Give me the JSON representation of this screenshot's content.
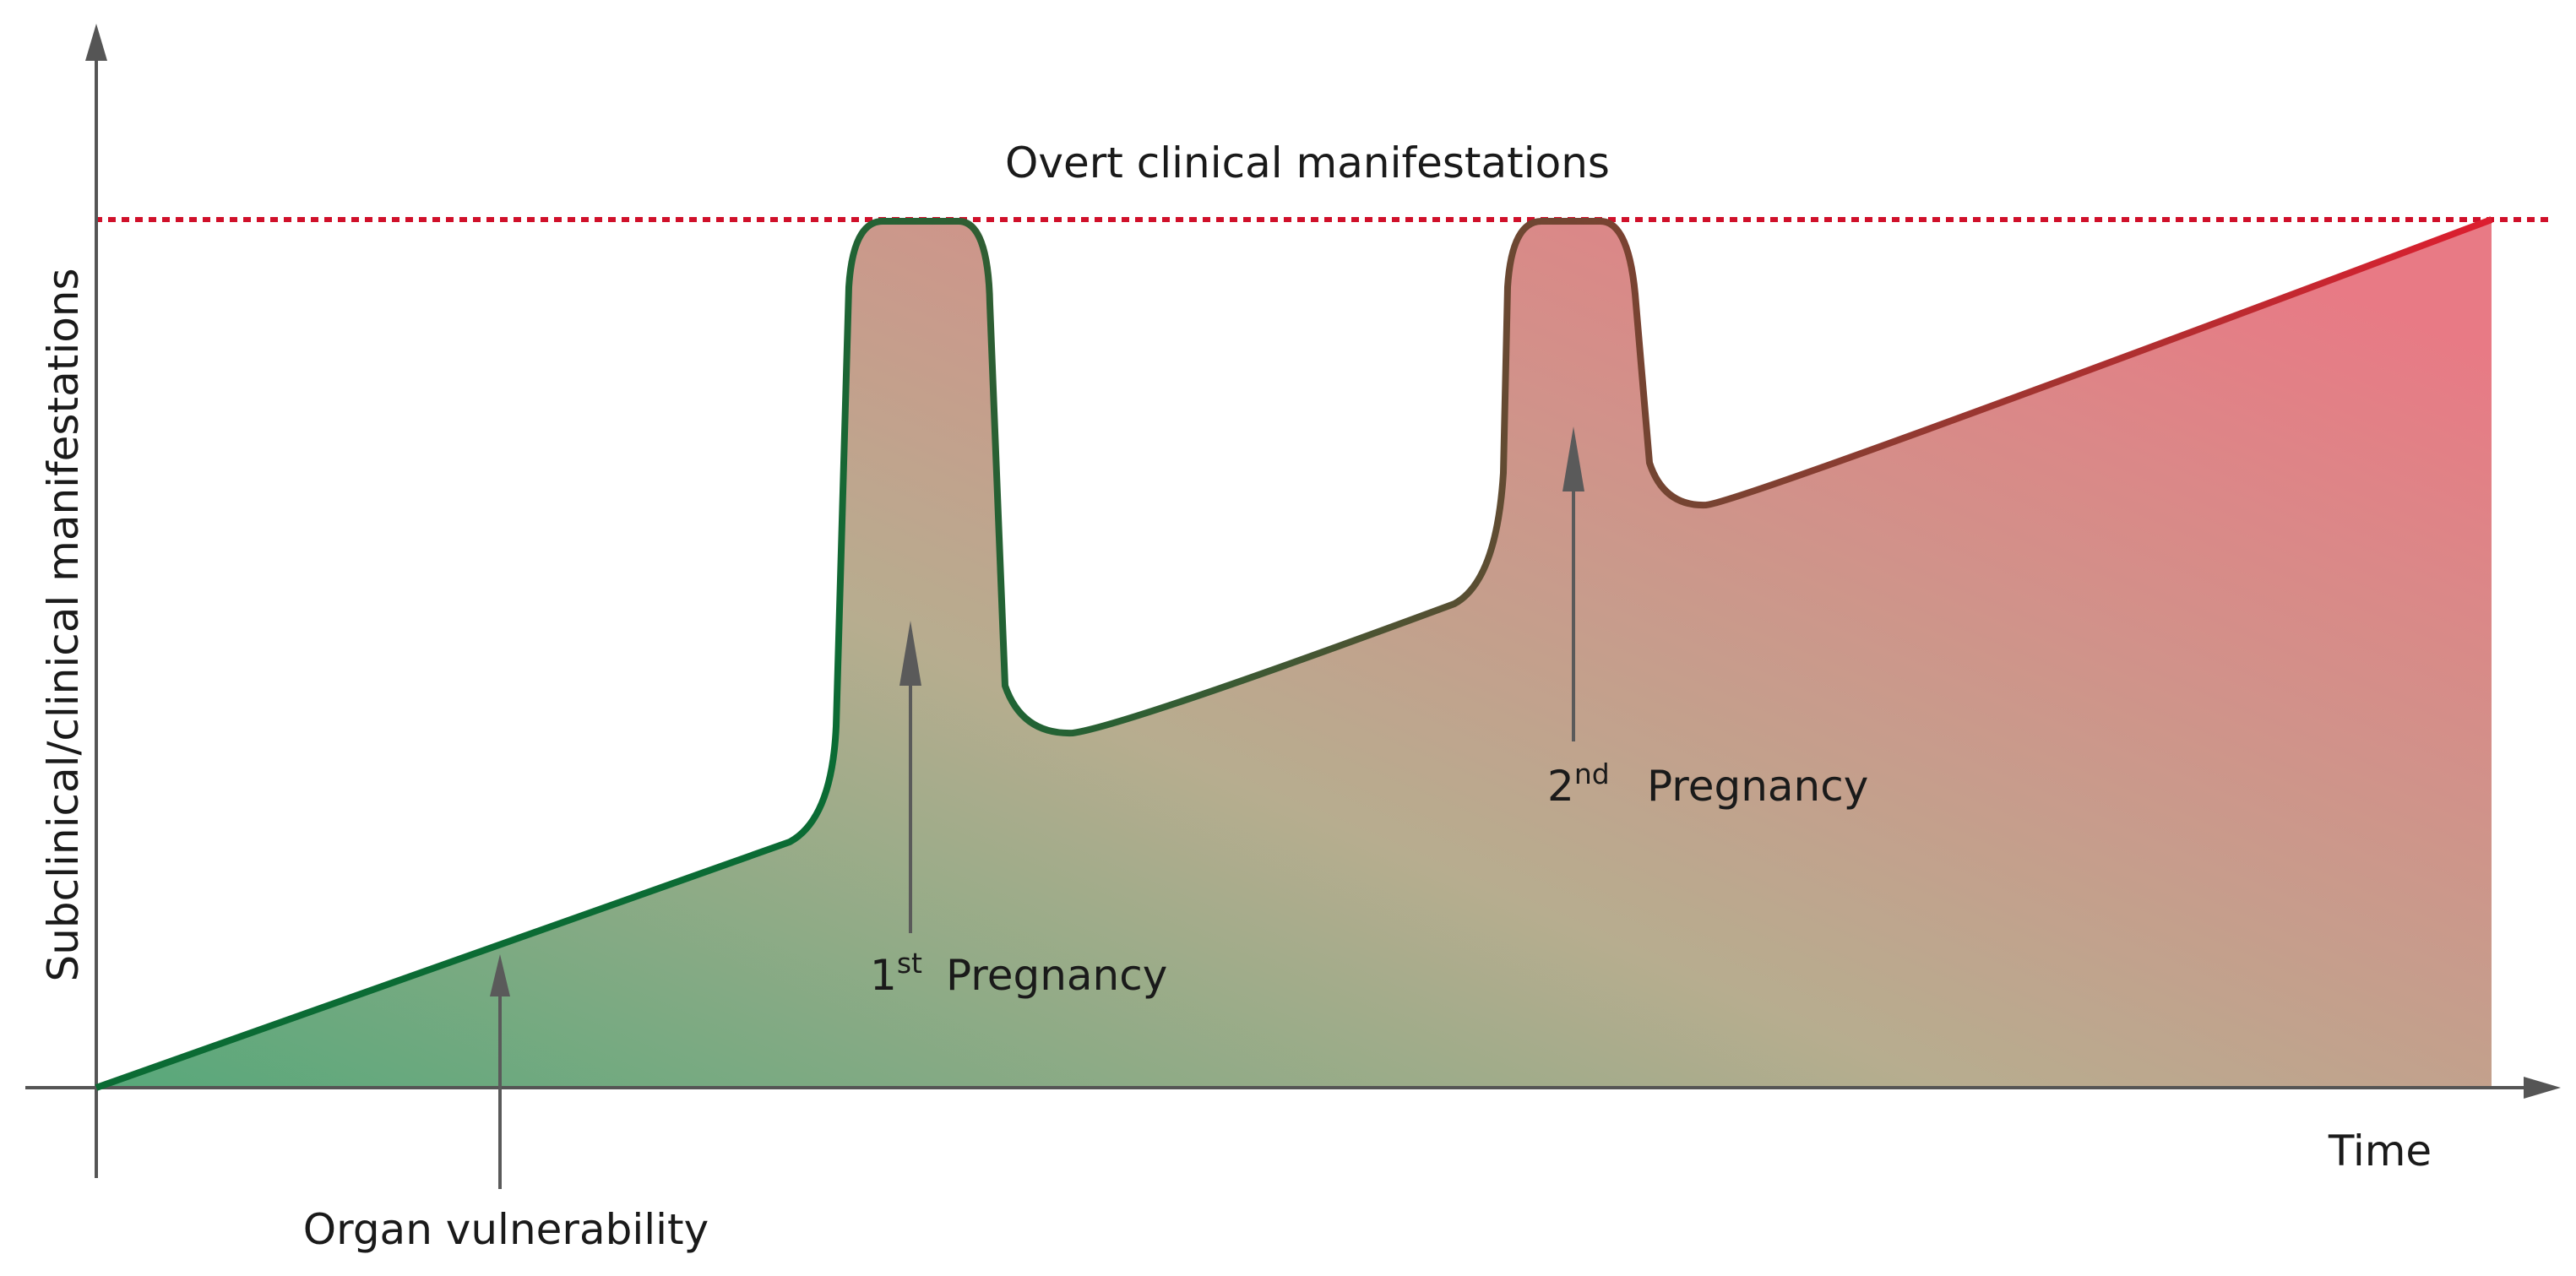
{
  "labels": {
    "y_axis": "Subclinical/clinical manifestations",
    "x_axis": "Time",
    "threshold": "Overt clinical manifestations",
    "organ_vulnerability": "Organ vulnerability",
    "first_num": "1",
    "first_sup": "st",
    "second_num": "2",
    "second_sup": "nd",
    "pregnancy": "Pregnancy"
  },
  "colors": {
    "axis": "#555555",
    "threshold_line": "#d0102a",
    "curve_start": "#0b6b34",
    "curve_end": "#dd1e2f",
    "fill_start": "#57a87a",
    "fill_mid": "#b7ad8f",
    "fill_end": "#e87a85",
    "arrow": "#5a5a5a"
  }
}
